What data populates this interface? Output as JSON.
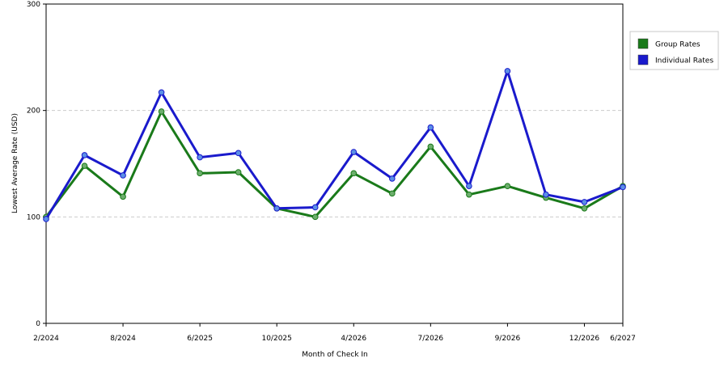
{
  "chart_data": {
    "type": "line",
    "title": "",
    "xlabel": "Month of Check In",
    "ylabel": "Lowest Average Rate (USD)",
    "ylim": [
      0,
      300
    ],
    "yticks": [
      0,
      100,
      200,
      300
    ],
    "y_gridlines": [
      100,
      200
    ],
    "grid": "horizontal-dashed",
    "legend_position": "right",
    "x_ticks": [
      "2/2024",
      "8/2024",
      "6/2025",
      "10/2025",
      "4/2026",
      "7/2026",
      "9/2026",
      "12/2026",
      "6/2027"
    ],
    "x_tick_index": [
      0,
      2,
      4,
      6,
      8,
      10,
      12,
      14,
      15
    ],
    "series": [
      {
        "name": "Group Rates",
        "color": "#1a7a1a",
        "values": [
          100,
          148,
          119,
          199,
          141,
          142,
          108,
          100,
          141,
          122,
          166,
          121,
          129,
          118,
          108,
          129
        ]
      },
      {
        "name": "Individual Rates",
        "color": "#1a1acc",
        "values": [
          98,
          158,
          139,
          217,
          156,
          160,
          108,
          109,
          161,
          136,
          184,
          129,
          237,
          121,
          114,
          128
        ]
      }
    ]
  }
}
